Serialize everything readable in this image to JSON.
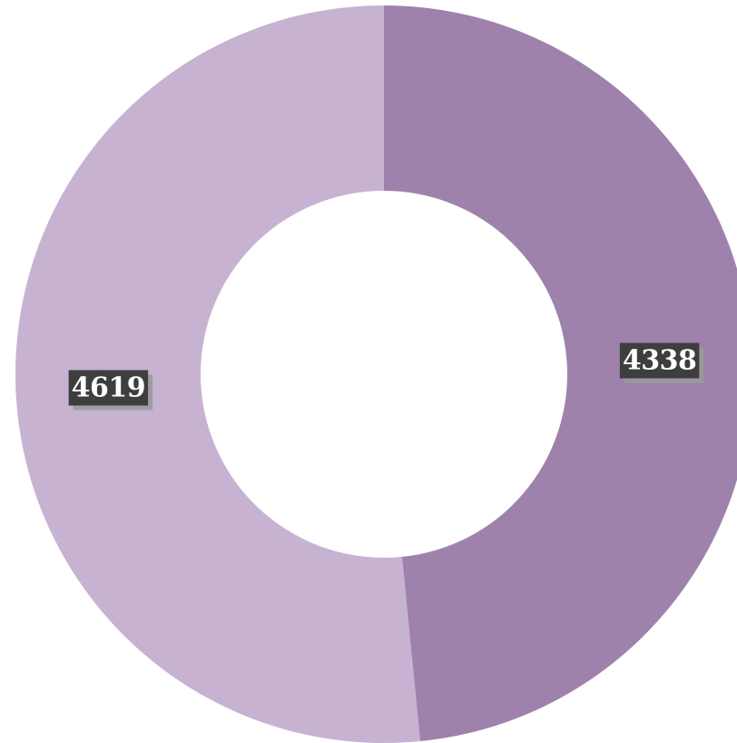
{
  "chart_data": {
    "type": "pie",
    "donut": true,
    "title": "",
    "categories": [
      "",
      ""
    ],
    "values": [
      4338,
      4619
    ],
    "labels": [
      "4338",
      "4619"
    ],
    "colors": [
      "#9e82ac",
      "#c7b2d1"
    ],
    "label_box_color": "#3e3e3e",
    "legend": "none"
  }
}
